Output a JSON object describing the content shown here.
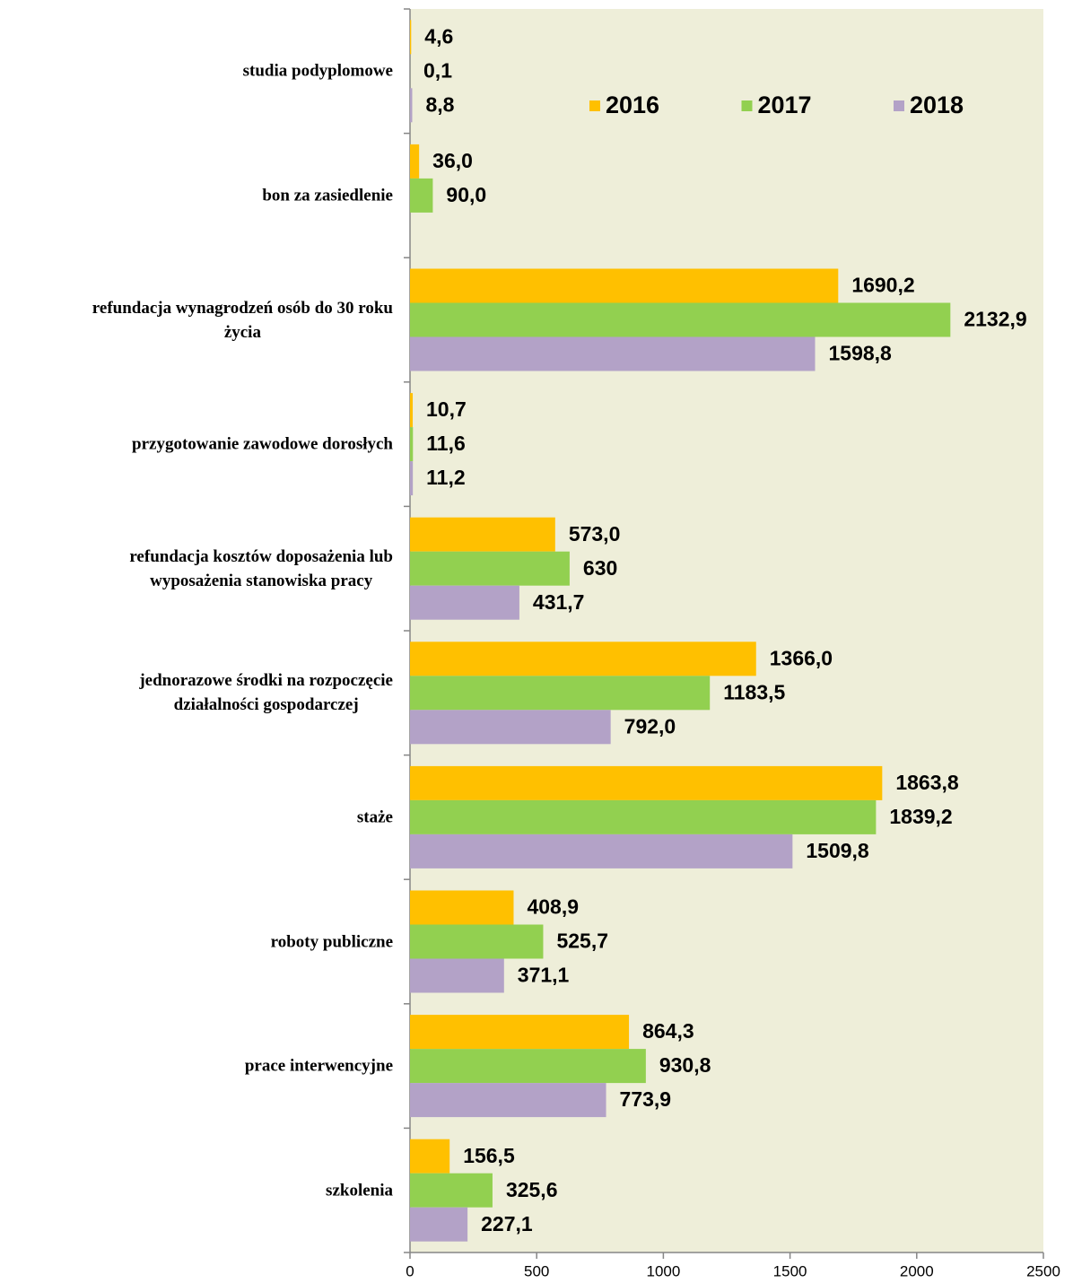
{
  "chart_data": {
    "type": "bar",
    "orientation": "horizontal",
    "categories": [
      "studia podyplomowe",
      "bon za zasiedlenie",
      "refundacja wynagrodzeń osób do 30 roku\nżycia",
      "przygotowanie zawodowe dorosłych",
      "refundacja kosztów doposażenia lub\nwyposażenia stanowiska pracy",
      "jednorazowe środki na rozpoczęcie\ndziałalności gospodarczej",
      "staże",
      "roboty publiczne",
      "prace interwencyjne",
      "szkolenia"
    ],
    "series": [
      {
        "name": "2016",
        "color": "#FFC000",
        "values": [
          4.6,
          36.0,
          1690.2,
          10.7,
          573.0,
          1366.0,
          1863.8,
          408.9,
          864.3,
          156.5
        ],
        "value_labels": [
          "4,6",
          "36,0",
          "1690,2",
          "10,7",
          "573,0",
          "1366,0",
          "1863,8",
          "408,9",
          "864,3",
          "156,5"
        ]
      },
      {
        "name": "2017",
        "color": "#92D050",
        "values": [
          0.1,
          90.0,
          2132.9,
          11.6,
          630,
          1183.5,
          1839.2,
          525.7,
          930.8,
          325.6
        ],
        "value_labels": [
          "0,1",
          "90,0",
          "2132,9",
          "11,6",
          "630",
          "1183,5",
          "1839,2",
          "525,7",
          "930,8",
          "325,6"
        ]
      },
      {
        "name": "2018",
        "color": "#B3A2C7",
        "values": [
          8.8,
          null,
          1598.8,
          11.2,
          431.7,
          792.0,
          1509.8,
          371.1,
          773.9,
          227.1
        ],
        "value_labels": [
          "8,8",
          null,
          "1598,8",
          "11,2",
          "431,7",
          "792,0",
          "1509,8",
          "371,1",
          "773,9",
          "227,1"
        ]
      }
    ],
    "xlim": [
      0,
      2500
    ],
    "xticks": [
      0,
      500,
      1000,
      1500,
      2000,
      2500
    ],
    "grid": false,
    "legend": "top-right"
  }
}
